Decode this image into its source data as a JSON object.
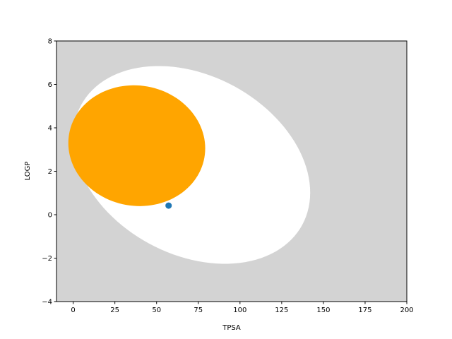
{
  "chart_data": {
    "type": "scatter",
    "xlabel": "TPSA",
    "ylabel": "LOGP",
    "x": [
      57.2
    ],
    "values": [
      0.42
    ],
    "color": "#1f77b4",
    "background": "#d3d3d3",
    "ellipses": [
      {
        "center": [
          71.051,
          2.292
        ],
        "width": 142.081,
        "height": 8.74,
        "angle": -1.031325,
        "color": "#ffffff"
      },
      {
        "center": [
          38.117,
          3.177
        ],
        "width": 82.061,
        "height": 5.557,
        "angle": -0.171887,
        "color": "#ffa500"
      }
    ],
    "xlim": [
      -10,
      200
    ],
    "xticks": [
      0,
      25,
      50,
      75,
      100,
      125,
      150,
      175,
      200
    ],
    "ylim": [
      -4,
      8
    ],
    "yticks": [
      {
        "value": -4,
        "label": "−4"
      },
      {
        "value": -2,
        "label": "−2"
      },
      0,
      2,
      4,
      6,
      8
    ],
    "grid": false
  }
}
